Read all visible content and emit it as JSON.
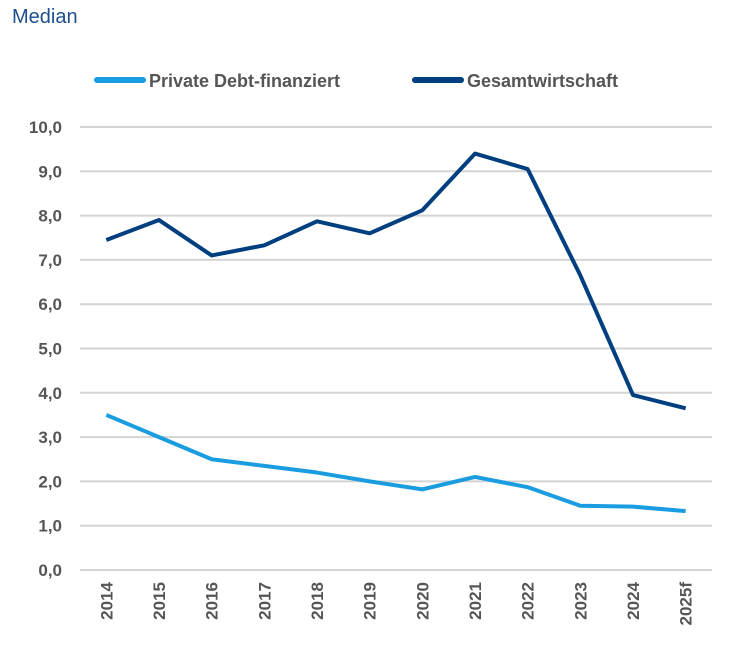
{
  "chart_data": {
    "type": "line",
    "title": "Median",
    "xlabel": "",
    "ylabel": "",
    "categories": [
      "2014",
      "2015",
      "2016",
      "2017",
      "2018",
      "2019",
      "2020",
      "2021",
      "2022",
      "2023",
      "2024",
      "2025f"
    ],
    "ylim": [
      0,
      10
    ],
    "yticks": [
      "0,0",
      "1,0",
      "2,0",
      "3,0",
      "4,0",
      "5,0",
      "6,0",
      "7,0",
      "8,0",
      "9,0",
      "10,0"
    ],
    "grid": true,
    "legend_position": "top",
    "series": [
      {
        "name": "Private Debt-finanziert",
        "color": "#1a9de0",
        "values": [
          3.5,
          3.0,
          2.5,
          2.35,
          2.2,
          2.0,
          1.82,
          2.1,
          1.87,
          1.45,
          1.43,
          1.33
        ]
      },
      {
        "name": "Gesamtwirtschaft",
        "color": "#003f7f",
        "values": [
          7.45,
          7.9,
          7.1,
          7.33,
          7.87,
          7.6,
          8.12,
          9.4,
          9.05,
          6.65,
          3.95,
          3.65
        ]
      }
    ]
  }
}
